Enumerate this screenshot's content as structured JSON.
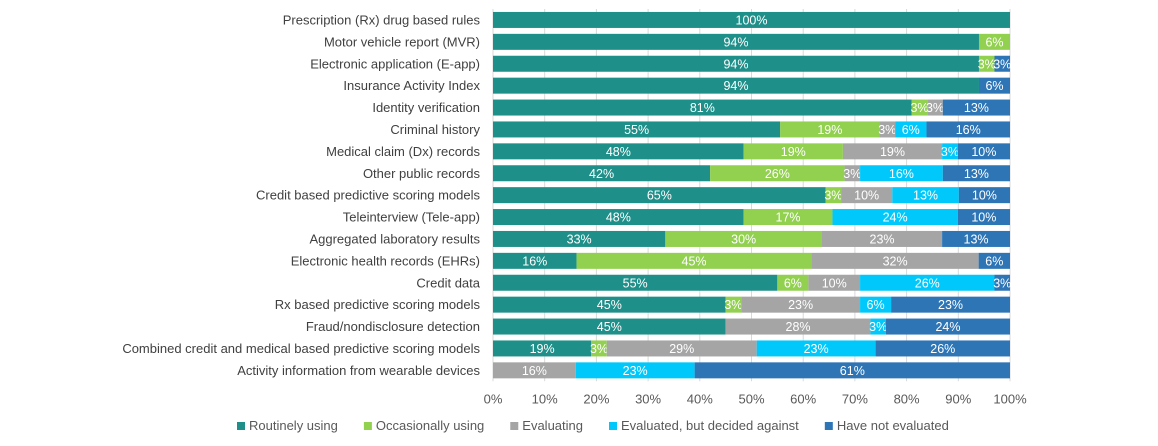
{
  "chart_data": {
    "type": "bar",
    "orientation": "horizontal",
    "stacked": true,
    "percent": true,
    "categories": [
      "Prescription (Rx) drug based rules",
      "Motor vehicle report (MVR)",
      "Electronic application (E-app)",
      "Insurance Activity Index",
      "Identity verification",
      "Criminal history",
      "Medical claim (Dx) records",
      "Other public records",
      "Credit based predictive scoring models",
      "Teleinterview (Tele-app)",
      "Aggregated laboratory results",
      "Electronic health records (EHRs)",
      "Credit data",
      "Rx based predictive scoring models",
      "Fraud/nondisclosure detection",
      "Combined credit and medical based predictive scoring models",
      "Activity information from wearable devices"
    ],
    "series": [
      {
        "name": "Routinely using",
        "color": "#1f8f8a",
        "values": [
          100,
          94,
          94,
          94,
          81,
          55,
          48,
          42,
          65,
          48,
          33,
          16,
          55,
          45,
          45,
          19,
          0
        ]
      },
      {
        "name": "Occasionally using",
        "color": "#92d050",
        "values": [
          0,
          6,
          3,
          0,
          3,
          19,
          19,
          26,
          3,
          17,
          30,
          45,
          6,
          3,
          0,
          3,
          0
        ]
      },
      {
        "name": "Evaluating",
        "color": "#a5a5a5",
        "values": [
          0,
          0,
          0,
          0,
          3,
          3,
          19,
          3,
          10,
          0,
          23,
          32,
          10,
          23,
          28,
          29,
          16
        ]
      },
      {
        "name": "Evaluated, but decided against",
        "color": "#00c8fb",
        "values": [
          0,
          0,
          0,
          0,
          0,
          6,
          3,
          16,
          13,
          24,
          0,
          0,
          26,
          6,
          3,
          23,
          23
        ]
      },
      {
        "name": "Have not evaluated",
        "color": "#2e75b6",
        "values": [
          0,
          0,
          3,
          6,
          13,
          16,
          10,
          13,
          10,
          10,
          13,
          6,
          3,
          23,
          24,
          26,
          61
        ]
      }
    ],
    "xlim": [
      0,
      100
    ],
    "xticks": [
      "0%",
      "10%",
      "20%",
      "30%",
      "40%",
      "50%",
      "60%",
      "70%",
      "80%",
      "90%",
      "100%"
    ],
    "grid": true,
    "legend": "bottom"
  }
}
